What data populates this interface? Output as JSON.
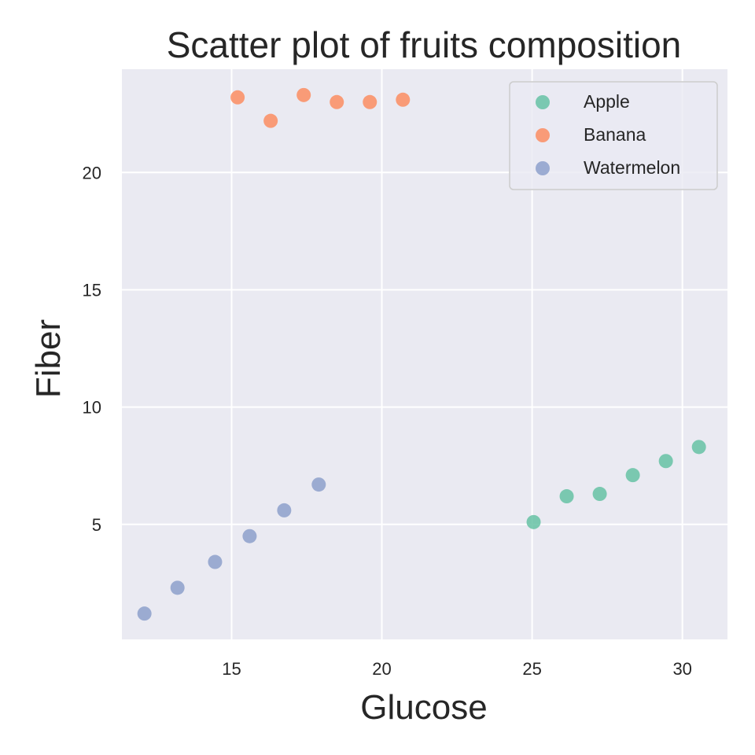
{
  "chart_data": {
    "type": "scatter",
    "title": "Scatter plot of fruits composition",
    "xlabel": "Glucose",
    "ylabel": "Fiber",
    "xlim": [
      11.35,
      31.5
    ],
    "ylim": [
      0.1,
      24.4
    ],
    "xticks": [
      15,
      20,
      25,
      30
    ],
    "yticks": [
      5,
      10,
      15,
      20
    ],
    "grid": true,
    "background": "#eaeaf2",
    "legend_position": "top-right",
    "series": [
      {
        "name": "Apple",
        "color": "#66c2a5",
        "x": [
          25.05,
          26.15,
          27.25,
          28.35,
          29.45,
          30.55
        ],
        "y": [
          5.1,
          6.2,
          6.3,
          7.1,
          7.7,
          8.3
        ]
      },
      {
        "name": "Banana",
        "color": "#fc8d62",
        "x": [
          15.2,
          16.3,
          17.4,
          18.5,
          19.6,
          20.7
        ],
        "y": [
          23.2,
          22.2,
          23.3,
          23.0,
          23.0,
          23.1
        ]
      },
      {
        "name": "Watermelon",
        "color": "#8da0cb",
        "x": [
          12.1,
          13.2,
          14.45,
          15.6,
          16.75,
          17.9
        ],
        "y": [
          1.2,
          2.3,
          3.4,
          4.5,
          5.6,
          6.7
        ]
      }
    ]
  }
}
